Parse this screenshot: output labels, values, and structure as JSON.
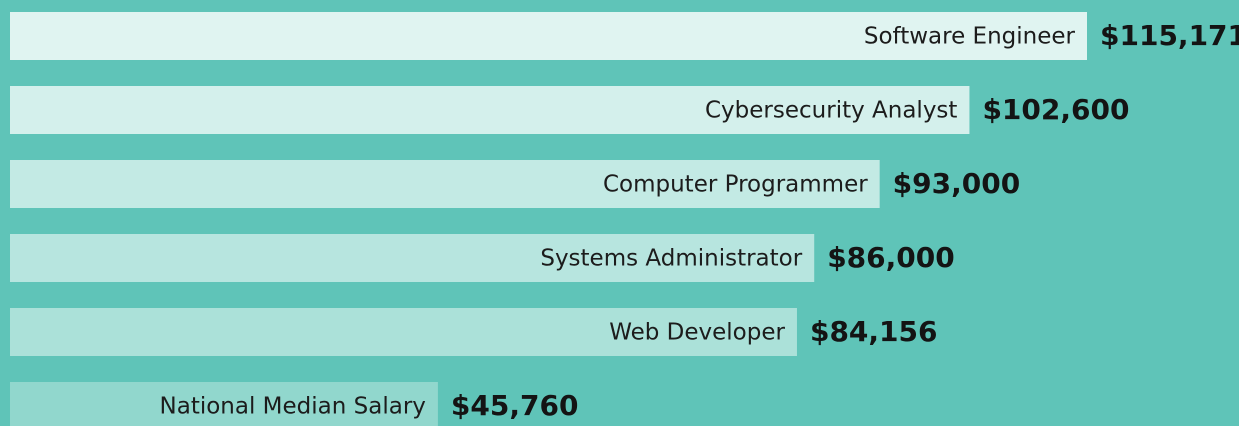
{
  "chart_data": {
    "type": "bar",
    "orientation": "horizontal",
    "categories": [
      "Software Engineer",
      "Cybersecurity Analyst",
      "Computer Programmer",
      "Systems Administrator",
      "Web Developer",
      "National Median Salary"
    ],
    "values": [
      115171,
      102600,
      93000,
      86000,
      84156,
      45760
    ],
    "value_labels": [
      "$115,171",
      "$102,600",
      "$93,000",
      "$86,000",
      "$84,156",
      "$45,760"
    ],
    "colors": [
      "#e0f4f1",
      "#d4f0ec",
      "#c3eae4",
      "#b7e5df",
      "#abe1d9",
      "#91d7cd"
    ],
    "background": "#5fc4b8"
  }
}
